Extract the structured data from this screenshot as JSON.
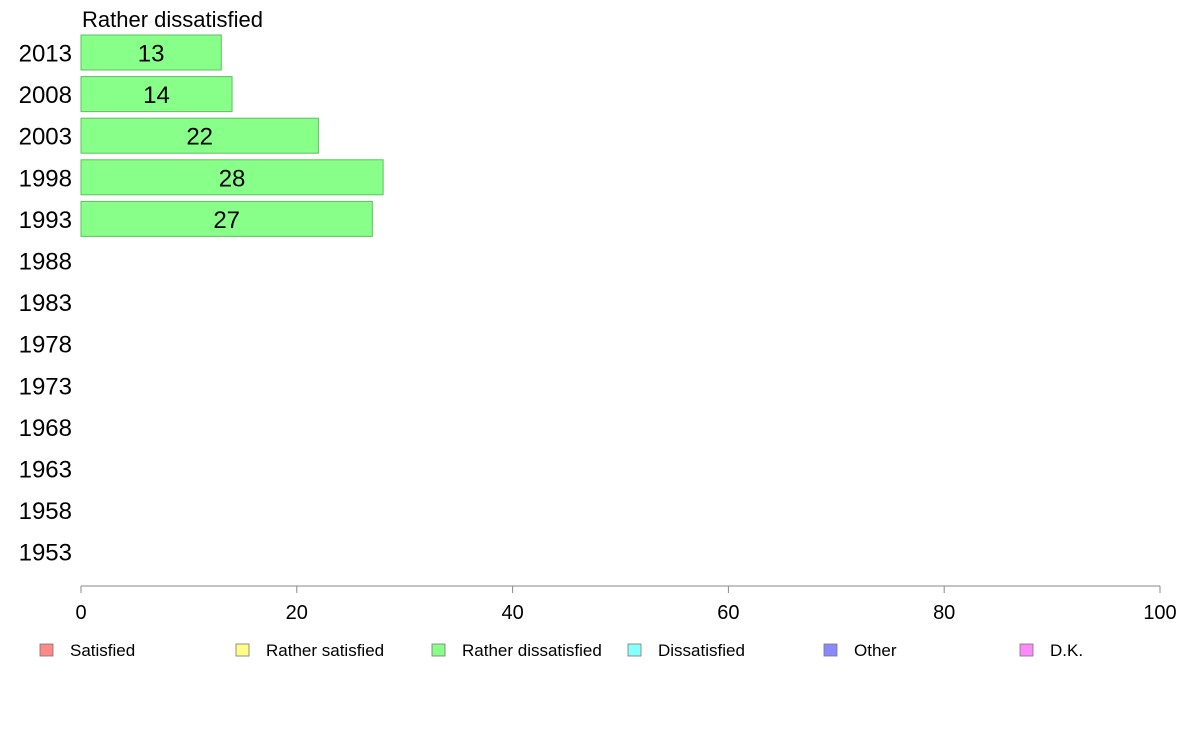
{
  "chart_data": {
    "type": "bar",
    "orientation": "horizontal",
    "title": "Rather dissatisfied",
    "categories": [
      "2013",
      "2008",
      "2003",
      "1998",
      "1993",
      "1988",
      "1983",
      "1978",
      "1973",
      "1968",
      "1963",
      "1958",
      "1953"
    ],
    "series": [
      {
        "name": "Rather dissatisfied",
        "color": "#88ff88",
        "values": [
          13,
          14,
          22,
          28,
          27,
          null,
          null,
          null,
          null,
          null,
          null,
          null,
          null
        ]
      }
    ],
    "xlim": [
      0,
      100
    ],
    "xticks": [
      0,
      20,
      40,
      60,
      80,
      100
    ],
    "grid": false,
    "legend": {
      "position": "bottom",
      "items": [
        {
          "label": "Satisfied",
          "color": "#ff8888"
        },
        {
          "label": "Rather satisfied",
          "color": "#ffff88"
        },
        {
          "label": "Rather dissatisfied",
          "color": "#88ff88"
        },
        {
          "label": "Dissatisfied",
          "color": "#88ffff"
        },
        {
          "label": "Other",
          "color": "#8888ff"
        },
        {
          "label": "D.K.",
          "color": "#ff88ff"
        }
      ]
    }
  }
}
